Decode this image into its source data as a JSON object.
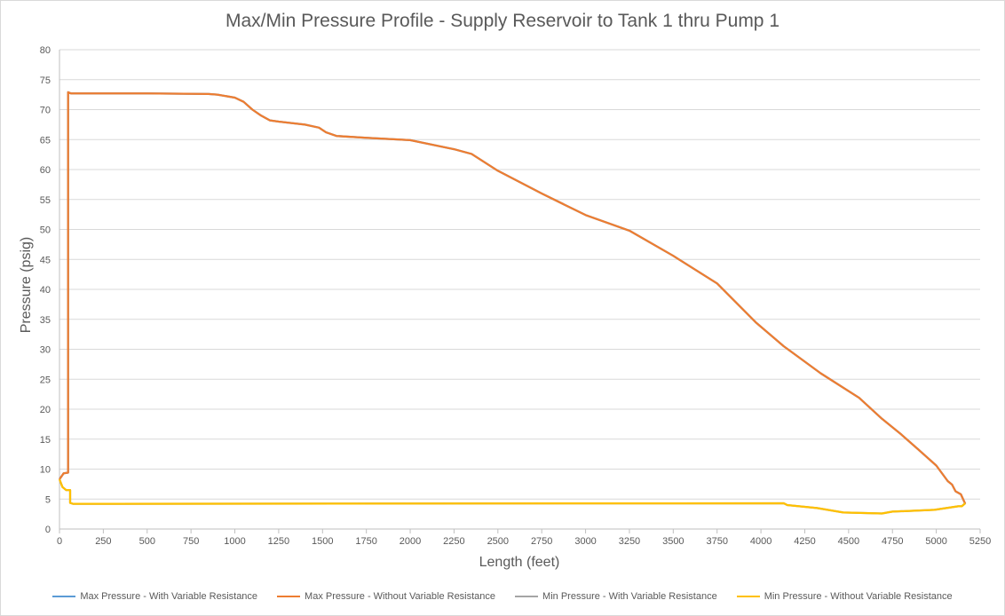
{
  "chart_data": {
    "type": "line",
    "title": "Max/Min Pressure Profile - Supply Reservoir to Tank 1 thru Pump 1",
    "xlabel": "Length (feet)",
    "ylabel": "Pressure (psig)",
    "xlim": [
      0,
      5250
    ],
    "ylim": [
      0,
      80
    ],
    "xticks": [
      0,
      250,
      500,
      750,
      1000,
      1250,
      1500,
      1750,
      2000,
      2250,
      2500,
      2750,
      3000,
      3250,
      3500,
      3750,
      4000,
      4250,
      4500,
      4750,
      5000,
      5250
    ],
    "yticks": [
      0,
      5,
      10,
      15,
      20,
      25,
      30,
      35,
      40,
      45,
      50,
      55,
      60,
      65,
      70,
      75,
      80
    ],
    "grid": "horizontal",
    "legend_position": "bottom",
    "series": [
      {
        "name": "Max Pressure - With Variable Resistance",
        "color": "#5B9BD5",
        "x": [
          0,
          24,
          49,
          49,
          66,
          500,
          850,
          900,
          1000,
          1050,
          1100,
          1150,
          1200,
          1250,
          1400,
          1480,
          1520,
          1580,
          1750,
          2000,
          2250,
          2350,
          2500,
          2750,
          3000,
          3250,
          3500,
          3750,
          3970,
          4130,
          4340,
          4560,
          4690,
          4800,
          4900,
          5000,
          5065,
          5090,
          5110,
          5140,
          5165
        ],
        "y": [
          8.3,
          9.3,
          9.4,
          72.9,
          72.7,
          72.7,
          72.6,
          72.5,
          72.0,
          71.3,
          70.0,
          69.0,
          68.2,
          68.0,
          67.5,
          67.0,
          66.2,
          65.6,
          65.3,
          64.9,
          63.4,
          62.6,
          59.8,
          56.0,
          52.4,
          49.8,
          45.6,
          41.0,
          34.5,
          30.5,
          26.0,
          21.9,
          18.4,
          15.8,
          13.2,
          10.6,
          8.0,
          7.4,
          6.3,
          5.8,
          4.2
        ]
      },
      {
        "name": "Max Pressure - Without Variable Resistance",
        "color": "#ED7D31",
        "x": [
          0,
          24,
          49,
          49,
          66,
          500,
          850,
          900,
          1000,
          1050,
          1100,
          1150,
          1200,
          1250,
          1400,
          1480,
          1520,
          1580,
          1750,
          2000,
          2250,
          2350,
          2500,
          2750,
          3000,
          3250,
          3500,
          3750,
          3970,
          4130,
          4340,
          4560,
          4690,
          4800,
          4900,
          5000,
          5065,
          5090,
          5110,
          5140,
          5165
        ],
        "y": [
          8.3,
          9.3,
          9.4,
          72.9,
          72.7,
          72.7,
          72.6,
          72.5,
          72.0,
          71.3,
          70.0,
          69.0,
          68.2,
          68.0,
          67.5,
          67.0,
          66.2,
          65.6,
          65.3,
          64.9,
          63.4,
          62.6,
          59.8,
          56.0,
          52.4,
          49.8,
          45.6,
          41.0,
          34.5,
          30.5,
          26.0,
          21.9,
          18.4,
          15.8,
          13.2,
          10.6,
          8.0,
          7.4,
          6.3,
          5.8,
          4.2
        ]
      },
      {
        "name": "Min Pressure - With Variable Resistance",
        "color": "#A5A5A5",
        "x": [
          0,
          17,
          38,
          61,
          61,
          76,
          4130,
          4150,
          4320,
          4470,
          4690,
          4750,
          4990,
          5125,
          5145,
          5165
        ],
        "y": [
          8.3,
          7.0,
          6.5,
          6.5,
          4.35,
          4.2,
          4.3,
          4.0,
          3.5,
          2.75,
          2.6,
          2.9,
          3.2,
          3.8,
          3.8,
          4.3
        ]
      },
      {
        "name": "Min Pressure - Without Variable Resistance",
        "color": "#FFC000",
        "x": [
          0,
          17,
          38,
          61,
          61,
          76,
          4130,
          4150,
          4320,
          4470,
          4690,
          4750,
          4990,
          5125,
          5145,
          5165
        ],
        "y": [
          8.3,
          7.0,
          6.5,
          6.5,
          4.35,
          4.2,
          4.3,
          4.0,
          3.5,
          2.75,
          2.6,
          2.9,
          3.2,
          3.8,
          3.8,
          4.3
        ]
      }
    ]
  }
}
